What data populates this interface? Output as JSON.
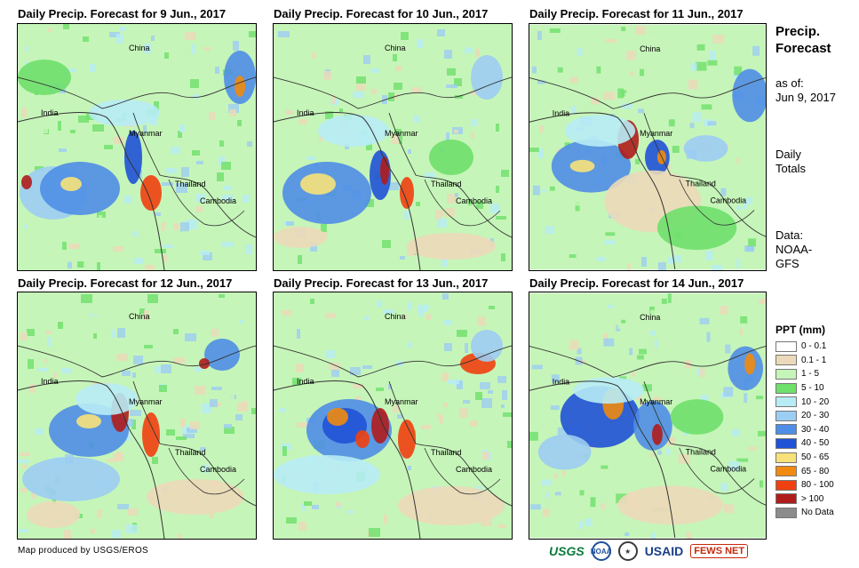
{
  "panels": [
    {
      "title": "Daily Precip. Forecast for 9 Jun., 2017"
    },
    {
      "title": "Daily Precip. Forecast for 10 Jun., 2017"
    },
    {
      "title": "Daily Precip. Forecast for 11 Jun., 2017"
    },
    {
      "title": "Daily Precip. Forecast for 12 Jun., 2017"
    },
    {
      "title": "Daily Precip. Forecast for 13 Jun., 2017"
    },
    {
      "title": "Daily Precip. Forecast for 14 Jun., 2017"
    }
  ],
  "map_labels": {
    "china": "China",
    "india": "India",
    "myanmar": "Myanmar",
    "thailand": "Thailand",
    "cambodia": "Cambodia"
  },
  "sidebar": {
    "title_line1": "Precip.",
    "title_line2": "Forecast",
    "asof_line1": "as of:",
    "asof_line2": "Jun 9, 2017",
    "daily_line1": "Daily",
    "daily_line2": "Totals",
    "data_line1": "Data:",
    "data_line2": "NOAA-",
    "data_line3": "GFS"
  },
  "legend": {
    "title": "PPT (mm)",
    "items": [
      {
        "label": "0 - 0.1",
        "color": "#ffffff"
      },
      {
        "label": "0.1 - 1",
        "color": "#ecd9b9"
      },
      {
        "label": "1 - 5",
        "color": "#c6f5b9"
      },
      {
        "label": "5 - 10",
        "color": "#6ee06b"
      },
      {
        "label": "10 - 20",
        "color": "#b7ecf5"
      },
      {
        "label": "20 - 30",
        "color": "#9ccdf2"
      },
      {
        "label": "30 - 40",
        "color": "#4f8ee6"
      },
      {
        "label": "40 - 50",
        "color": "#1f52d6"
      },
      {
        "label": "50 - 65",
        "color": "#f7e27a"
      },
      {
        "label": "65 - 80",
        "color": "#f08a10"
      },
      {
        "label": "80 - 100",
        "color": "#f0400f"
      },
      {
        "label": "> 100",
        "color": "#b01c1c"
      },
      {
        "label": "No Data",
        "color": "#8c8c8c"
      }
    ]
  },
  "footer": {
    "credit": "Map produced by USGS/EROS",
    "logo_usgs": "USGS",
    "logo_noaa": "NOAA",
    "logo_usaid": "USAID",
    "logo_fews": "FEWS NET"
  }
}
